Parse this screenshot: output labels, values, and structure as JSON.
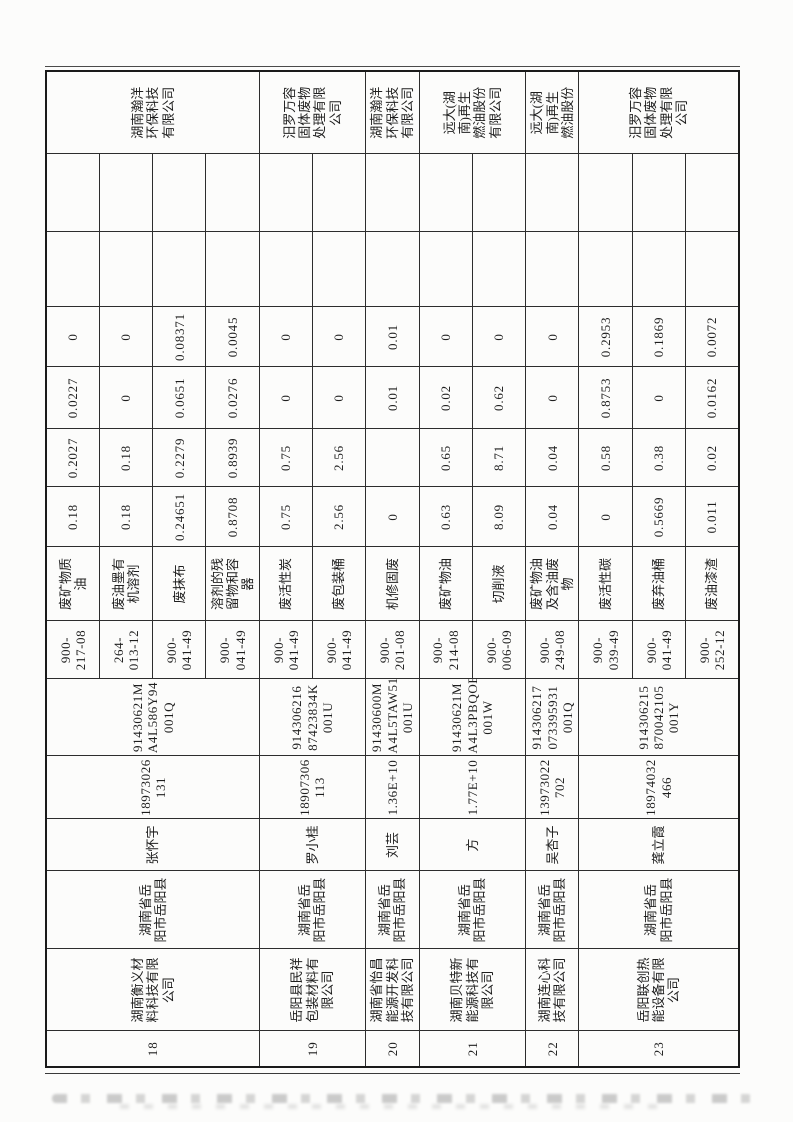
{
  "colors": {
    "paper": "#fcfcfb",
    "ink": "#1e1e1e",
    "border": "#2d2d2d"
  },
  "table": {
    "groups": [
      {
        "no": "18",
        "company": "湖南衡义材\n料科技有限\n公司",
        "location": "湖南省岳\n阳市岳阳县",
        "contact": "张怀宇",
        "phone": "18973026\n131",
        "credit_code": "91430621M\nA4L586Y94\n001Q",
        "receiver": "湖南瀚洋\n环保科技\n有限公司",
        "wastes": [
          {
            "code": "900-\n217-08",
            "name": "废矿物质\n油",
            "v1": "0.18",
            "v2": "0.2027",
            "v3": "0.0227",
            "v4": "0"
          },
          {
            "code": "264-\n013-12",
            "name": "废油墨有\n机溶剂",
            "v1": "0.18",
            "v2": "0.18",
            "v3": "0",
            "v4": "0"
          },
          {
            "code": "900-\n041-49",
            "name": "废抹布",
            "v1": "0.24651",
            "v2": "0.2279",
            "v3": "0.0651",
            "v4": "0.08371"
          },
          {
            "code": "900-\n041-49",
            "name": "溶剂的残\n留物和容\n器",
            "v1": "0.8708",
            "v2": "0.8939",
            "v3": "0.0276",
            "v4": "0.0045"
          }
        ]
      },
      {
        "no": "19",
        "company": "岳阳县民祥\n包装材料有\n限公司",
        "location": "湖南省岳\n阳市岳阳县",
        "contact": "罗小桂",
        "phone": "18907306\n113",
        "credit_code": "914306216\n87423834K\n001U",
        "receiver": "汨罗万容\n固体废物\n处理有限\n公司",
        "wastes": [
          {
            "code": "900-\n041-49",
            "name": "废活性炭",
            "v1": "0.75",
            "v2": "0.75",
            "v3": "0",
            "v4": "0"
          },
          {
            "code": "900-\n041-49",
            "name": "废包装桶",
            "v1": "2.56",
            "v2": "2.56",
            "v3": "0",
            "v4": "0"
          }
        ]
      },
      {
        "no": "20",
        "company": "湖南省怡昌\n能源开发科\n技有限公司",
        "location": "湖南省岳\n阳市岳阳县",
        "contact": "刘芸",
        "phone": "1.36E+10",
        "credit_code": "91430600M\nA4L5TAW51\n001U",
        "receiver": "湖南瀚洋\n环保科技\n有限公司",
        "wastes": [
          {
            "code": "900-\n201-08",
            "name": "机修固废",
            "v1": "0",
            "v2": "",
            "v3": "0.01",
            "v4": "0.01"
          }
        ]
      },
      {
        "no": "21",
        "company": "湖南贝特新\n能源科技有\n限公司",
        "location": "湖南省岳\n阳市岳阳县",
        "contact": "方",
        "phone": "1.77E+10",
        "credit_code": "91430621M\nA4L3PBQOB\n001W",
        "receiver": "远大(湖\n南)再生\n燃油股份\n有限公司",
        "wastes": [
          {
            "code": "900-\n214-08",
            "name": "废矿物油",
            "v1": "0.63",
            "v2": "0.65",
            "v3": "0.02",
            "v4": "0"
          },
          {
            "code": "900-\n006-09",
            "name": "切削液",
            "v1": "8.09",
            "v2": "8.71",
            "v3": "0.62",
            "v4": "0"
          }
        ]
      },
      {
        "no": "22",
        "company": "湖南连心科\n技有限公司",
        "location": "湖南省岳\n阳市岳阳县",
        "contact": "吴杏子",
        "phone": "13973022\n702",
        "credit_code": "914306217\n073395931\n001Q",
        "receiver": "远大(湖\n南)再生\n燃油股份",
        "wastes": [
          {
            "code": "900-\n249-08",
            "name": "废矿物油\n及含油废\n物",
            "v1": "0.04",
            "v2": "0.04",
            "v3": "0",
            "v4": "0"
          }
        ]
      },
      {
        "no": "23",
        "company": "岳阳联创热\n能设备有限\n公司",
        "location": "湖南省岳\n阳市岳阳县",
        "contact": "龚立霞",
        "phone": "18974032\n466",
        "credit_code": "914306215\n870042105\n001Y",
        "receiver": "汨罗万容\n固体废物\n处理有限\n公司",
        "wastes": [
          {
            "code": "900-\n039-49",
            "name": "废活性碳",
            "v1": "0",
            "v2": "0.58",
            "v3": "0.8753",
            "v4": "0.2953"
          },
          {
            "code": "900-\n041-49",
            "name": "废弃油桶",
            "v1": "0.5669",
            "v2": "0.38",
            "v3": "0",
            "v4": "0.1869"
          },
          {
            "code": "900-\n252-12",
            "name": "废油漆渣",
            "v1": "0.011",
            "v2": "0.02",
            "v3": "0.0162",
            "v4": "0.0072"
          }
        ]
      }
    ]
  }
}
